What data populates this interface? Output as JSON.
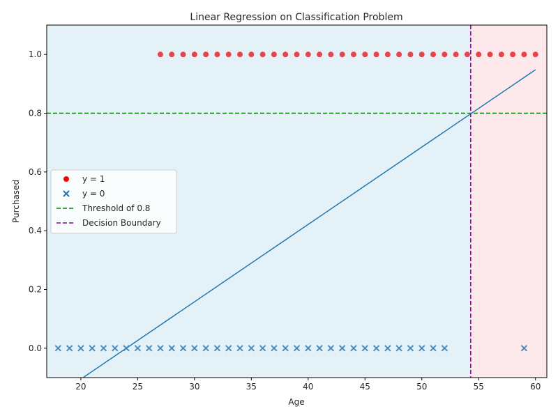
{
  "chart_data": {
    "type": "scatter",
    "title": "Linear Regression on Classification Problem",
    "xlabel": "Age",
    "ylabel": "Purchased",
    "xlim": [
      17,
      61
    ],
    "ylim": [
      -0.1,
      1.1
    ],
    "xticks": [
      20,
      25,
      30,
      35,
      40,
      45,
      50,
      55,
      60
    ],
    "yticks": [
      0.0,
      0.2,
      0.4,
      0.6,
      0.8,
      1.0
    ],
    "xtick_labels": [
      "20",
      "25",
      "30",
      "35",
      "40",
      "45",
      "50",
      "55",
      "60"
    ],
    "ytick_labels": [
      "0.0",
      "0.2",
      "0.4",
      "0.6",
      "0.8",
      "1.0"
    ],
    "grid": false,
    "legend_position": "center-left",
    "threshold": 0.8,
    "decision_boundary_x": 54.3,
    "regions": [
      {
        "name": "predicted-0-region",
        "x_from": 17,
        "x_to": 54.3,
        "color": "#e4f2f7"
      },
      {
        "name": "predicted-1-region",
        "x_from": 54.3,
        "x_to": 61,
        "color": "#fde8ec"
      }
    ],
    "series": [
      {
        "name": "y = 1",
        "kind": "scatter",
        "marker": "circle",
        "color": "#e8393f",
        "x": [
          27,
          28,
          29,
          30,
          31,
          32,
          33,
          34,
          35,
          36,
          37,
          38,
          39,
          40,
          41,
          42,
          43,
          44,
          45,
          46,
          47,
          48,
          49,
          50,
          51,
          52,
          53,
          54,
          55,
          56,
          57,
          58,
          59,
          60
        ],
        "y": [
          1,
          1,
          1,
          1,
          1,
          1,
          1,
          1,
          1,
          1,
          1,
          1,
          1,
          1,
          1,
          1,
          1,
          1,
          1,
          1,
          1,
          1,
          1,
          1,
          1,
          1,
          1,
          1,
          1,
          1,
          1,
          1,
          1,
          1
        ]
      },
      {
        "name": "y = 0",
        "kind": "scatter",
        "marker": "x",
        "color": "#3d81b5",
        "x": [
          18,
          19,
          20,
          21,
          22,
          23,
          24,
          25,
          26,
          27,
          28,
          29,
          30,
          31,
          32,
          33,
          34,
          35,
          36,
          37,
          38,
          39,
          40,
          41,
          42,
          43,
          44,
          45,
          46,
          47,
          48,
          49,
          50,
          51,
          52,
          59
        ],
        "y": [
          0,
          0,
          0,
          0,
          0,
          0,
          0,
          0,
          0,
          0,
          0,
          0,
          0,
          0,
          0,
          0,
          0,
          0,
          0,
          0,
          0,
          0,
          0,
          0,
          0,
          0,
          0,
          0,
          0,
          0,
          0,
          0,
          0,
          0,
          0,
          0
        ]
      },
      {
        "name": "Threshold of 0.8",
        "kind": "hline",
        "y": 0.8,
        "color": "#008000",
        "dashed": true
      },
      {
        "name": "Decision Boundary",
        "kind": "vline",
        "x": 54.3,
        "color": "#800080",
        "dashed": true
      },
      {
        "kind": "line",
        "color": "#1f77b4",
        "x": [
          20.2,
          60
        ],
        "y": [
          -0.1,
          0.948
        ]
      }
    ]
  }
}
